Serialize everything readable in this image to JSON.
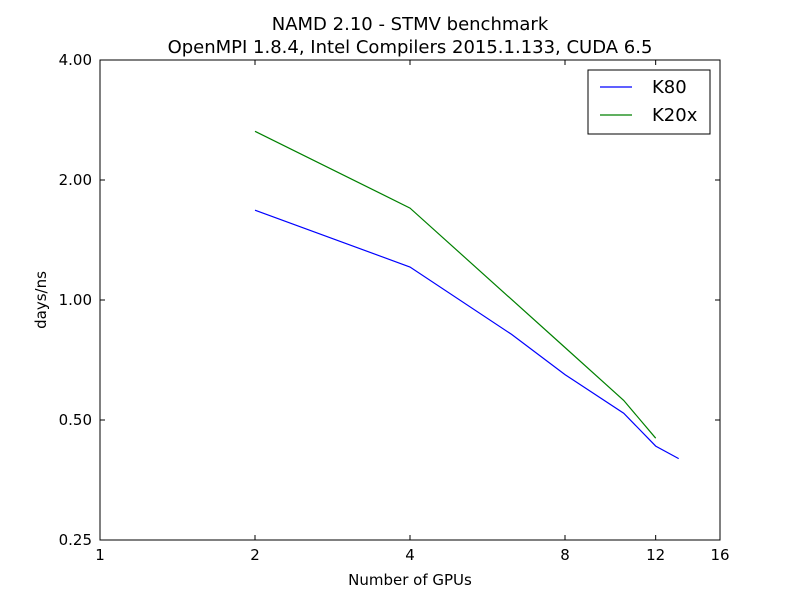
{
  "chart_data": {
    "type": "line",
    "title": "NAMD 2.10 - STMV benchmark",
    "subtitle": "OpenMPI 1.8.4, Intel Compilers 2015.1.133, CUDA 6.5",
    "xlabel": "Number of GPUs",
    "ylabel": "days/ns",
    "x_scale": "log2",
    "y_scale": "log2",
    "xlim": [
      1,
      16
    ],
    "ylim": [
      0.25,
      4.0
    ],
    "x_ticks": [
      1,
      2,
      4,
      8,
      12,
      16
    ],
    "x_tick_labels": [
      "1",
      "2",
      "4",
      "8",
      "12",
      "16"
    ],
    "y_ticks": [
      0.25,
      0.5,
      1.0,
      2.0,
      4.0
    ],
    "y_tick_labels": [
      "0.25",
      "0.50",
      "1.00",
      "2.00",
      "4.00"
    ],
    "grid": false,
    "legend_position": "top-right",
    "series": [
      {
        "name": "K80",
        "color": "#0000ff",
        "x": [
          2,
          4,
          6.3,
          8,
          10.4,
          12,
          13.3
        ],
        "y": [
          1.68,
          1.21,
          0.82,
          0.65,
          0.52,
          0.43,
          0.4
        ]
      },
      {
        "name": "K20x",
        "color": "#008000",
        "x": [
          2,
          4,
          8,
          10.4,
          12
        ],
        "y": [
          2.65,
          1.7,
          0.76,
          0.56,
          0.45
        ]
      }
    ]
  }
}
